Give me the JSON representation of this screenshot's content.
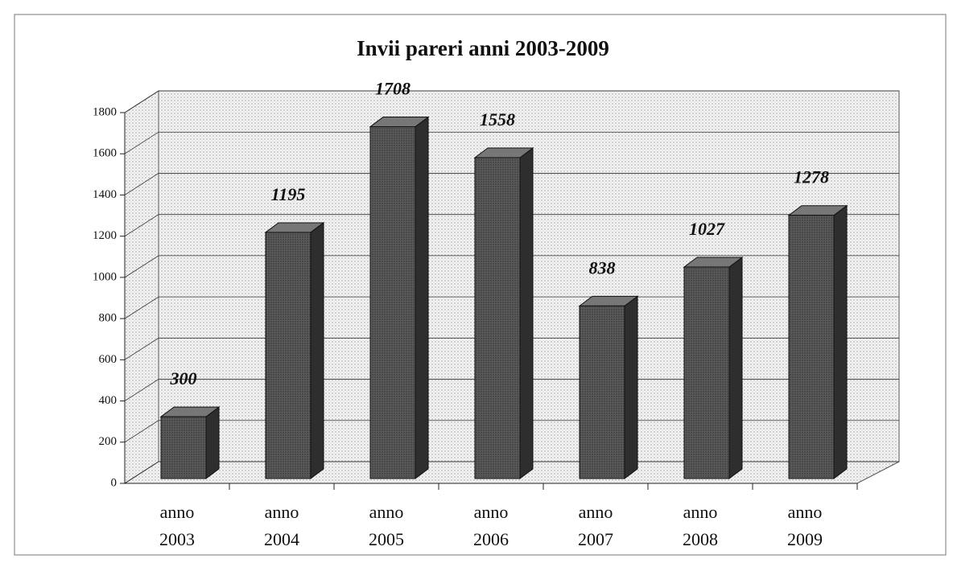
{
  "chart_data": {
    "type": "bar",
    "title": "Invii pareri anni 2003-2009",
    "categories": [
      "anno 2003",
      "anno 2004",
      "anno 2005",
      "anno 2006",
      "anno 2007",
      "anno 2008",
      "anno 2009"
    ],
    "values": [
      300,
      1195,
      1708,
      1558,
      838,
      1027,
      1278
    ],
    "color": "#4a4a4a",
    "ylim": [
      0,
      1800
    ],
    "yticks": [
      0,
      200,
      400,
      600,
      800,
      1000,
      1200,
      1400,
      1600,
      1800
    ],
    "grid": true
  }
}
